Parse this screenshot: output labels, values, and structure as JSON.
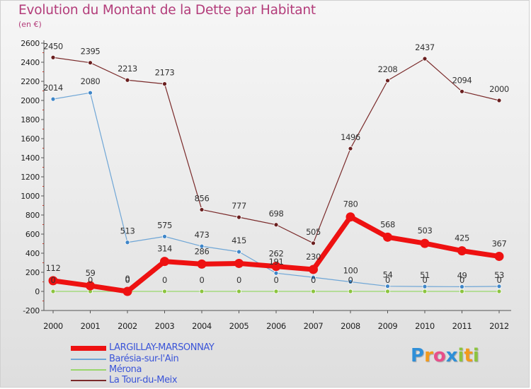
{
  "title": "Evolution du Montant de la Dette par Habitant",
  "subtitle": "(en €)",
  "legend": [
    {
      "label": "LARGILLAY-MARSONNAY",
      "color": "#ee1111",
      "width": 7
    },
    {
      "label": "Barésia-sur-l'Ain",
      "color": "#6fa6d6",
      "width": 1.5
    },
    {
      "label": "Mérona",
      "color": "#99d66b",
      "width": 1.5
    },
    {
      "label": "La Tour-du-Meix",
      "color": "#7a2a2a",
      "width": 1.5
    }
  ],
  "logo": {
    "text": "Proxiti",
    "letters": [
      {
        "ch": "P",
        "color": "#2f8fd8"
      },
      {
        "ch": "r",
        "color": "#f29a1c"
      },
      {
        "ch": "o",
        "color": "#e84f8a"
      },
      {
        "ch": "x",
        "color": "#2f8fd8"
      },
      {
        "ch": "i",
        "color": "#8cc43f"
      },
      {
        "ch": "t",
        "color": "#f29a1c"
      },
      {
        "ch": "i",
        "color": "#8cc43f"
      }
    ]
  },
  "chart_data": {
    "type": "line",
    "title": "Evolution du Montant de la Dette par Habitant",
    "subtitle": "(en €)",
    "x": [
      "2000",
      "2001",
      "2002",
      "2003",
      "2004",
      "2005",
      "2006",
      "2007",
      "2008",
      "2009",
      "2010",
      "2011",
      "2012"
    ],
    "ylim": [
      -200,
      2600
    ],
    "yticks": [
      "-200",
      "0",
      "200",
      "400",
      "600",
      "800",
      "1000",
      "1200",
      "1400",
      "1600",
      "1800",
      "2000",
      "2200",
      "2400",
      "2600"
    ],
    "grid": false,
    "legend_position": "bottom-left",
    "series": [
      {
        "name": "LARGILLAY-MARSONNAY",
        "color": "#ee1111",
        "marker": "#ee1111",
        "values": [
          112,
          59,
          0,
          314,
          286,
          293,
          262,
          230,
          780,
          568,
          503,
          425,
          367
        ],
        "labels": [
          "112",
          "59",
          "0",
          "314",
          "286",
          "",
          "262",
          "230",
          "780",
          "568",
          "503",
          "425",
          "367"
        ]
      },
      {
        "name": "Barésia-sur-l'Ain",
        "color": "#6fa6d6",
        "marker": "#3f86c8",
        "values": [
          2014,
          2080,
          513,
          575,
          473,
          415,
          191,
          147,
          100,
          54,
          51,
          49,
          53
        ],
        "labels": [
          "2014",
          "2080",
          "513",
          "575",
          "473",
          "415",
          "191",
          "",
          "100",
          "54",
          "51",
          "49",
          "53"
        ]
      },
      {
        "name": "Mérona",
        "color": "#99d66b",
        "marker": "#8cc43f",
        "values": [
          0,
          0,
          0,
          0,
          0,
          0,
          0,
          0,
          0,
          0,
          0,
          0,
          0
        ],
        "labels": [
          "0",
          "0",
          "0",
          "0",
          "0",
          "0",
          "0",
          "0",
          "0",
          "0",
          "0",
          "0",
          "0"
        ]
      },
      {
        "name": "La Tour-du-Meix",
        "color": "#7a2a2a",
        "marker": "#6a1f1f",
        "values": [
          2450,
          2395,
          2213,
          2173,
          856,
          777,
          698,
          505,
          1496,
          2208,
          2437,
          2094,
          2000
        ],
        "labels": [
          "2450",
          "2395",
          "2213",
          "2173",
          "856",
          "777",
          "698",
          "505",
          "1496",
          "2208",
          "2437",
          "2094",
          "2000"
        ]
      }
    ]
  }
}
